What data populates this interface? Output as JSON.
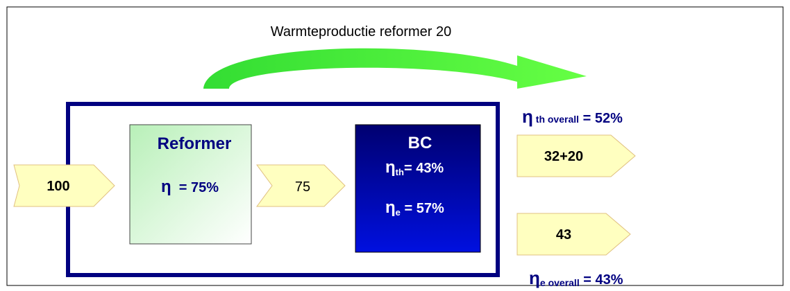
{
  "title": "Warmteproductie reformer 20",
  "input": {
    "label": "100"
  },
  "reformer": {
    "name": "Reformer",
    "efficiency": {
      "symbol": "η",
      "text": "  = 75%"
    }
  },
  "intermediate": {
    "label": "75"
  },
  "bc": {
    "name": "BC",
    "thermal": {
      "symbol": "η",
      "sub": "th",
      "text": "= 43%"
    },
    "electric": {
      "symbol": "η",
      "sub": "e",
      "text": " = 57%"
    }
  },
  "outputs": {
    "thermal": {
      "label": "32+20",
      "efficiency": {
        "symbol": "η",
        "sub": " th overall",
        "text": " = 52%"
      }
    },
    "electric": {
      "label": "43",
      "efficiency": {
        "symbol": "η",
        "sub": "e overall",
        "text": " = 43%"
      }
    }
  }
}
